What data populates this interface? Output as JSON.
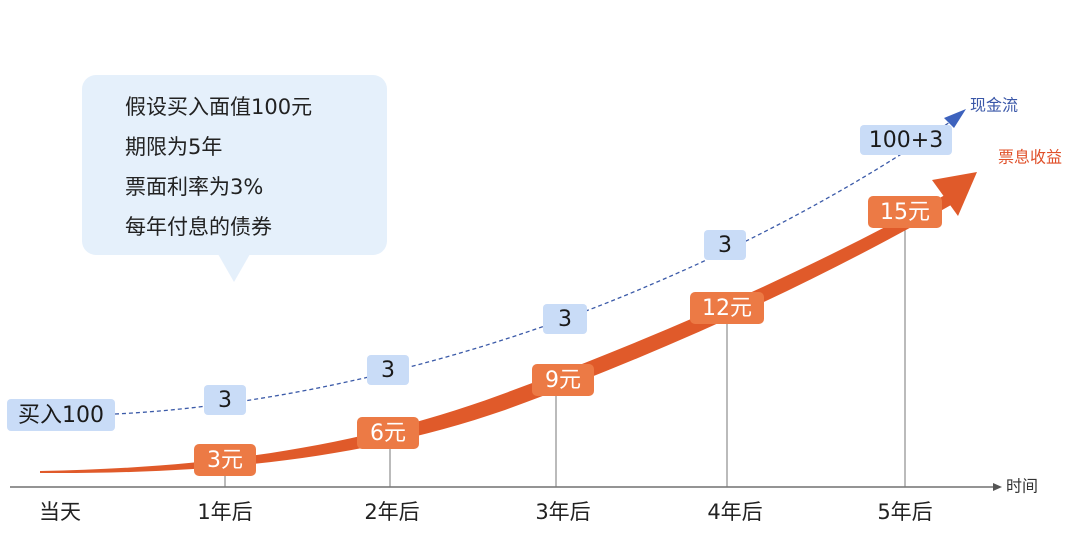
{
  "callout": {
    "lines": [
      "假设买入面值100元",
      "期限为5年",
      "票面利率为3%",
      "每年付息的债券"
    ]
  },
  "legend": {
    "cash_flow": "现金流",
    "coupon": "票息收益"
  },
  "axis": {
    "label": "时间",
    "ticks": [
      "当天",
      "1年后",
      "2年后",
      "3年后",
      "4年后",
      "5年后"
    ]
  },
  "cash_flows": [
    "买入100",
    "3",
    "3",
    "3",
    "3",
    "100+3"
  ],
  "coupons": [
    "3元",
    "6元",
    "9元",
    "12元",
    "15元"
  ]
}
